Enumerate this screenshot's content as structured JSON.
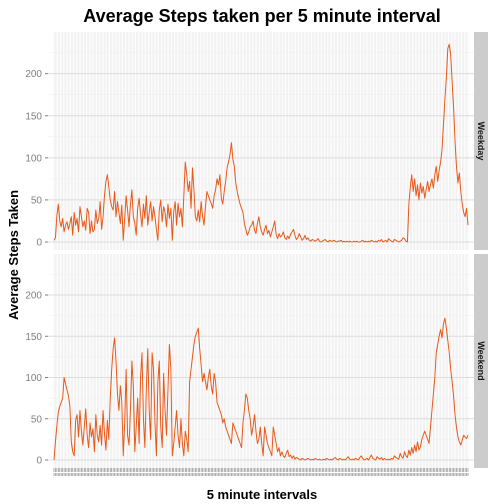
{
  "chart_data": {
    "type": "line",
    "title": "Average Steps taken per 5 minute interval",
    "xlabel": "5 minute intervals",
    "ylabel": "Average Steps Taken",
    "ylim": [
      0,
      240
    ],
    "yticks": [
      0,
      50,
      100,
      150,
      200
    ],
    "grid": true,
    "line_color": "#e8591a",
    "strip_color": "#cccccc",
    "panel_background": "#ffffff",
    "x": [
      0,
      5,
      10,
      15,
      20,
      25,
      30,
      35,
      40,
      45,
      50,
      55,
      100,
      105,
      110,
      115,
      120,
      125,
      130,
      135,
      140,
      145,
      150,
      155,
      200,
      205,
      210,
      215,
      220,
      225,
      230,
      235,
      240,
      245,
      250,
      255,
      300,
      305,
      310,
      315,
      320,
      325,
      330,
      335,
      340,
      345,
      350,
      355,
      400,
      405,
      410,
      415,
      420,
      425,
      430,
      435,
      440,
      445,
      450,
      455,
      500,
      505,
      510,
      515,
      520,
      525,
      530,
      535,
      540,
      545,
      550,
      555,
      600,
      605,
      610,
      615,
      620,
      625,
      630,
      635,
      640,
      645,
      650,
      655,
      700,
      705,
      710,
      715,
      720,
      725,
      730,
      735,
      740,
      745,
      750,
      755,
      800,
      805,
      810,
      815,
      820,
      825,
      830,
      835,
      840,
      845,
      850,
      855,
      900,
      905,
      910,
      915,
      920,
      925,
      930,
      935,
      940,
      945,
      950,
      955,
      1000,
      1005,
      1010,
      1015,
      1020,
      1025,
      1030,
      1035,
      1040,
      1045,
      1050,
      1055,
      1100,
      1105,
      1110,
      1115,
      1120,
      1125,
      1130,
      1135,
      1140,
      1145,
      1150,
      1155,
      1200,
      1205,
      1210,
      1215,
      1220,
      1225,
      1230,
      1235,
      1240,
      1245,
      1250,
      1255,
      1300,
      1305,
      1310,
      1315,
      1320,
      1325,
      1330,
      1335,
      1340,
      1345,
      1350,
      1355,
      1400,
      1405,
      1410,
      1415,
      1420,
      1425,
      1430,
      1435,
      1440,
      1445,
      1450,
      1455,
      1500,
      1505,
      1510,
      1515,
      1520,
      1525,
      1530,
      1535,
      1540,
      1545,
      1550,
      1555,
      1600,
      1605,
      1610,
      1615,
      1620,
      1625,
      1630,
      1635,
      1640,
      1645,
      1650,
      1655,
      1700,
      1705,
      1710,
      1715,
      1720,
      1725,
      1730,
      1735,
      1740,
      1745,
      1750,
      1755,
      1800,
      1805,
      1810,
      1815,
      1820,
      1825,
      1830,
      1835,
      1840,
      1845,
      1850,
      1855,
      1900,
      1905,
      1910,
      1915,
      1920,
      1925,
      1930,
      1935,
      1940,
      1945,
      1950,
      1955,
      2000,
      2005,
      2010,
      2015,
      2020,
      2025,
      2030,
      2035,
      2040,
      2045,
      2050,
      2055,
      2100,
      2105,
      2110,
      2115,
      2120,
      2125,
      2130,
      2135,
      2140,
      2145,
      2150,
      2155,
      2200,
      2205,
      2210,
      2215,
      2220,
      2225,
      2230,
      2235,
      2240,
      2245,
      2250,
      2255,
      2300,
      2305,
      2310,
      2315,
      2320,
      2325,
      2330,
      2335,
      2340,
      2345,
      2350,
      2355
    ],
    "series": [
      {
        "name": "Weekday",
        "values": [
          2,
          5,
          32,
          45,
          25,
          18,
          28,
          12,
          20,
          24,
          15,
          22,
          30,
          8,
          35,
          20,
          28,
          12,
          42,
          30,
          18,
          25,
          14,
          40,
          35,
          10,
          25,
          12,
          15,
          38,
          22,
          28,
          48,
          15,
          30,
          55,
          72,
          80,
          65,
          50,
          42,
          38,
          60,
          30,
          48,
          35,
          22,
          44,
          2,
          28,
          55,
          38,
          18,
          45,
          62,
          30,
          22,
          8,
          40,
          52,
          33,
          18,
          45,
          28,
          55,
          20,
          35,
          48,
          25,
          42,
          30,
          15,
          2,
          38,
          50,
          24,
          42,
          35,
          18,
          45,
          28,
          40,
          2,
          36,
          48,
          20,
          46,
          30,
          40,
          18,
          55,
          95,
          80,
          60,
          72,
          40,
          88,
          62,
          30,
          25,
          38,
          24,
          48,
          30,
          20,
          42,
          60,
          55,
          50,
          46,
          40,
          55,
          62,
          75,
          68,
          80,
          52,
          45,
          60,
          72,
          88,
          95,
          104,
          118,
          98,
          90,
          70,
          60,
          52,
          45,
          40,
          35,
          22,
          15,
          8,
          12,
          18,
          20,
          25,
          14,
          10,
          22,
          30,
          18,
          12,
          8,
          15,
          20,
          10,
          14,
          6,
          12,
          18,
          25,
          9,
          4,
          10,
          6,
          8,
          12,
          5,
          3,
          7,
          4,
          9,
          12,
          15,
          8,
          3,
          5,
          10,
          6,
          2,
          4,
          8,
          3,
          5,
          2,
          1,
          3,
          2,
          1,
          2,
          4,
          1,
          0,
          1,
          2,
          3,
          1,
          0,
          2,
          1,
          1,
          2,
          1,
          0,
          1,
          1,
          2,
          0,
          1,
          0,
          1,
          0,
          1,
          0,
          0,
          1,
          0,
          1,
          0,
          0,
          1,
          2,
          0,
          1,
          0,
          1,
          0,
          2,
          1,
          0,
          1,
          0,
          2,
          1,
          3,
          0,
          1,
          2,
          0,
          4,
          2,
          1,
          0,
          3,
          2,
          1,
          0,
          1,
          2,
          5,
          4,
          1,
          0,
          45,
          65,
          80,
          60,
          75,
          55,
          68,
          50,
          70,
          58,
          66,
          52,
          62,
          72,
          60,
          68,
          75,
          64,
          80,
          90,
          72,
          85,
          95,
          110,
          140,
          170,
          195,
          230,
          235,
          222,
          190,
          160,
          120,
          90,
          70,
          82,
          60,
          45,
          35,
          30,
          40,
          20
        ]
      },
      {
        "name": "Weekend",
        "values": [
          0,
          22,
          42,
          58,
          65,
          70,
          75,
          100,
          92,
          85,
          78,
          65,
          22,
          10,
          5,
          48,
          55,
          28,
          60,
          35,
          18,
          40,
          62,
          30,
          15,
          45,
          28,
          38,
          10,
          55,
          30,
          22,
          42,
          18,
          60,
          32,
          12,
          48,
          25,
          75,
          110,
          135,
          148,
          120,
          80,
          60,
          90,
          70,
          5,
          45,
          110,
          30,
          18,
          60,
          120,
          90,
          10,
          40,
          75,
          20,
          100,
          130,
          50,
          15,
          85,
          135,
          60,
          25,
          130,
          110,
          45,
          5,
          95,
          120,
          40,
          15,
          105,
          60,
          30,
          85,
          140,
          110,
          5,
          20,
          40,
          60,
          30,
          15,
          50,
          20,
          5,
          35,
          25,
          10,
          95,
          110,
          125,
          140,
          150,
          155,
          160,
          135,
          115,
          95,
          105,
          95,
          85,
          100,
          110,
          90,
          80,
          105,
          95,
          70,
          65,
          60,
          55,
          45,
          50,
          40,
          35,
          30,
          25,
          20,
          45,
          40,
          35,
          30,
          25,
          20,
          15,
          45,
          60,
          80,
          75,
          60,
          50,
          30,
          40,
          55,
          35,
          20,
          25,
          40,
          20,
          5,
          40,
          30,
          20,
          15,
          10,
          5,
          40,
          30,
          20,
          10,
          15,
          5,
          10,
          5,
          3,
          8,
          12,
          4,
          6,
          2,
          5,
          1,
          3,
          2,
          1,
          0,
          2,
          1,
          0,
          1,
          2,
          1,
          0,
          1,
          0,
          2,
          1,
          0,
          1,
          0,
          0,
          1,
          0,
          2,
          1,
          0,
          1,
          0,
          2,
          3,
          1,
          0,
          2,
          1,
          0,
          1,
          0,
          2,
          4,
          1,
          0,
          1,
          0,
          2,
          1,
          0,
          3,
          5,
          2,
          0,
          1,
          2,
          0,
          3,
          6,
          2,
          1,
          0,
          4,
          2,
          1,
          3,
          0,
          2,
          1,
          0,
          1,
          0,
          2,
          1,
          5,
          3,
          2,
          1,
          8,
          4,
          2,
          10,
          5,
          3,
          12,
          6,
          15,
          8,
          18,
          10,
          22,
          12,
          16,
          25,
          30,
          35,
          30,
          25,
          20,
          40,
          60,
          80,
          100,
          130,
          140,
          150,
          158,
          148,
          165,
          172,
          160,
          145,
          130,
          110,
          95,
          78,
          55,
          40,
          28,
          22,
          18,
          24,
          30,
          28,
          26,
          30
        ]
      }
    ]
  }
}
